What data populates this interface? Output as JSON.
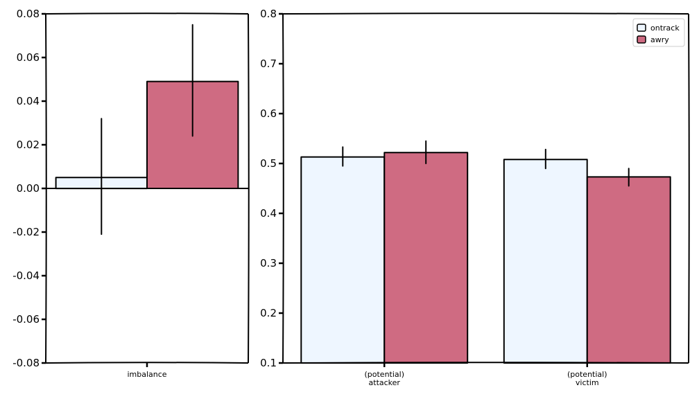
{
  "colors": {
    "ontrack": "#eef6ff",
    "awry": "#cf6b82",
    "axis": "#000000",
    "errorbar": "#000000"
  },
  "chart_data": [
    {
      "type": "bar",
      "categories": [
        "imbalance"
      ],
      "series": [
        {
          "name": "ontrack",
          "values": [
            0.005
          ],
          "err_low": [
            -0.021
          ],
          "err_high": [
            0.032
          ]
        },
        {
          "name": "awry",
          "values": [
            0.049
          ],
          "err_low": [
            0.024
          ],
          "err_high": [
            0.075
          ]
        }
      ],
      "ylim": [
        -0.08,
        0.08
      ],
      "yticks": [
        "-0.08",
        "-0.06",
        "-0.04",
        "-0.02",
        "0.00",
        "0.02",
        "0.04",
        "0.06",
        "0.08"
      ],
      "zero_line": true
    },
    {
      "type": "bar",
      "categories": [
        "(potential)\nattacker",
        "(potential)\nvictim"
      ],
      "series": [
        {
          "name": "ontrack",
          "values": [
            0.513,
            0.508
          ],
          "err_low": [
            0.495,
            0.49
          ],
          "err_high": [
            0.533,
            0.528
          ]
        },
        {
          "name": "awry",
          "values": [
            0.522,
            0.473
          ],
          "err_low": [
            0.5,
            0.455
          ],
          "err_high": [
            0.545,
            0.49
          ]
        }
      ],
      "ylim": [
        0.1,
        0.8
      ],
      "yticks": [
        "0.1",
        "0.2",
        "0.3",
        "0.4",
        "0.5",
        "0.6",
        "0.7",
        "0.8"
      ],
      "legend": {
        "position": "top-right",
        "entries": [
          "ontrack",
          "awry"
        ]
      }
    }
  ]
}
